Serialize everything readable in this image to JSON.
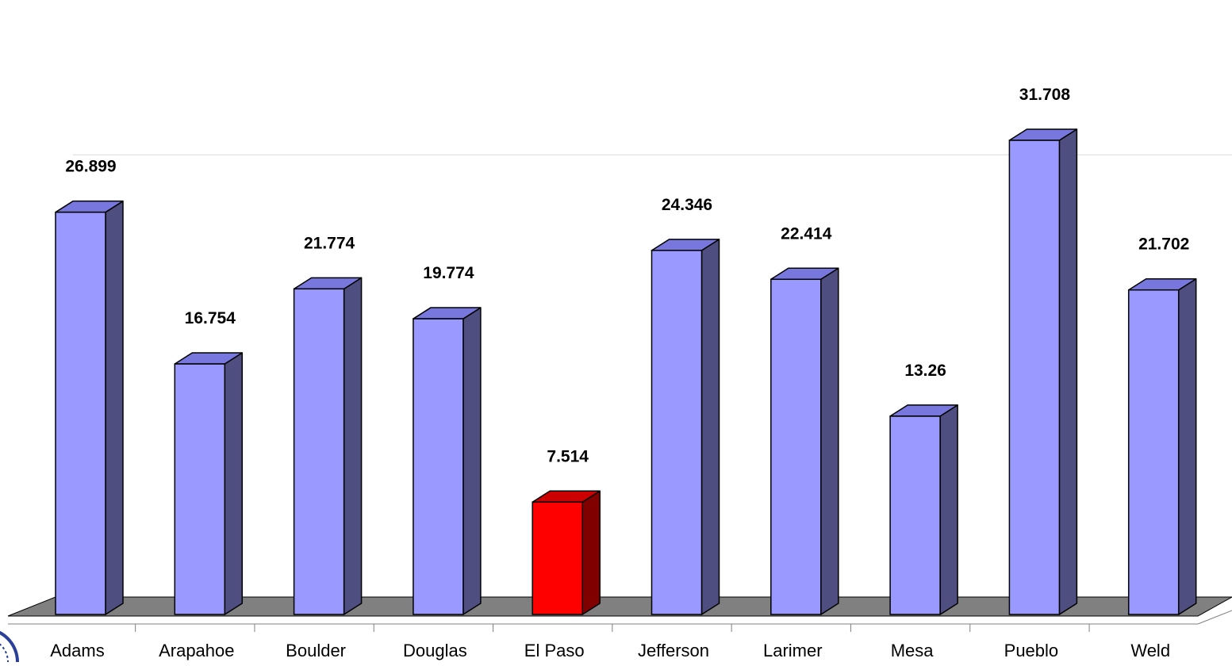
{
  "chart_data": {
    "type": "bar",
    "categories": [
      "Adams",
      "Arapahoe",
      "Boulder",
      "Douglas",
      "El Paso",
      "Jefferson",
      "Larimer",
      "Mesa",
      "Pueblo",
      "Weld"
    ],
    "values": [
      26.899,
      16.754,
      21.774,
      19.774,
      7.514,
      24.346,
      22.414,
      13.26,
      31.708,
      21.702
    ],
    "value_labels": [
      "26.899",
      "16.754",
      "21.774",
      "19.774",
      "7.514",
      "24.346",
      "22.414",
      "13.26",
      "31.708",
      "21.702"
    ],
    "highlight_category": "El Paso",
    "ylim": [
      0,
      35
    ],
    "title": "",
    "xlabel": "",
    "ylabel": "",
    "grid": "horizontal",
    "legend": "none",
    "style": "3d-column"
  },
  "colors": {
    "bar_front": "#9999ff",
    "bar_top": "#7777dd",
    "bar_side": "#4e4e80",
    "highlight_front": "#ff0000",
    "highlight_top": "#cc0000",
    "highlight_side": "#800000",
    "floor": "#808080",
    "gridline": "#d9d9d9",
    "logo_blue": "#2a3f9a"
  }
}
